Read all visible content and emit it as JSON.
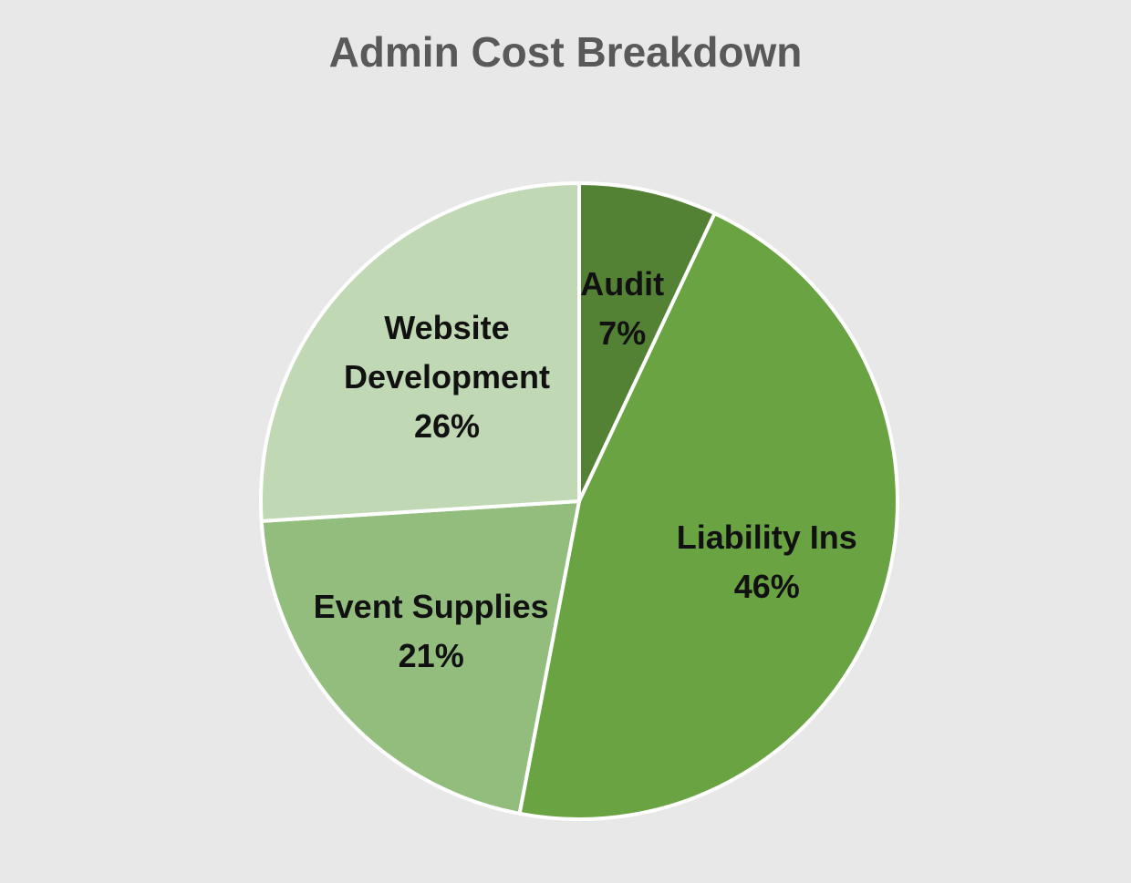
{
  "chart_data": {
    "type": "pie",
    "title": "Admin Cost Breakdown",
    "slices": [
      {
        "label": "Audit",
        "value": 7,
        "value_label": "7%",
        "color": "#548235",
        "label_lines": [
          "Audit",
          "7%"
        ]
      },
      {
        "label": "Liability Ins",
        "value": 46,
        "value_label": "46%",
        "color": "#6aa342",
        "label_lines": [
          "Liability Ins",
          "46%"
        ]
      },
      {
        "label": "Event Supplies",
        "value": 21,
        "value_label": "21%",
        "color": "#93bd7c",
        "label_lines": [
          "Event Supplies",
          "21%"
        ]
      },
      {
        "label": "Website Development",
        "value": 26,
        "value_label": "26%",
        "color": "#c0d8b3",
        "label_lines": [
          "Website",
          "Development",
          "26%"
        ]
      }
    ],
    "start_angle": "12 o'clock",
    "direction": "clockwise",
    "legend": "none",
    "background": "#e8e8e8",
    "slice_border": "#ffffff"
  }
}
